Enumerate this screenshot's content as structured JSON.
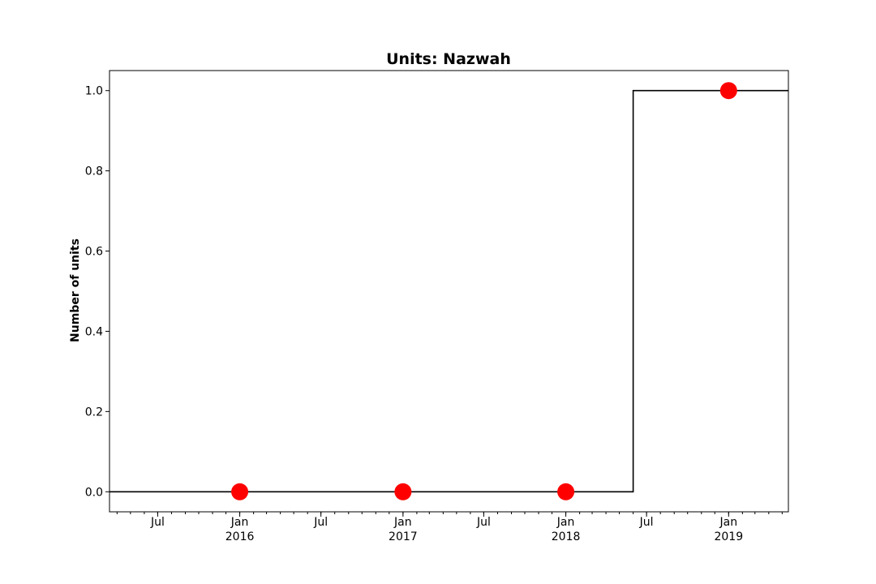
{
  "chart_data": {
    "type": "line",
    "title": "Units: Nazwah",
    "xlabel": "",
    "ylabel": "Number of units",
    "x_range": [
      "2015-03-15",
      "2019-05-15"
    ],
    "ylim": [
      -0.05,
      1.05
    ],
    "grid": false,
    "y_ticks": [
      "0.0",
      "0.2",
      "0.4",
      "0.6",
      "0.8",
      "1.0"
    ],
    "y_tick_values": [
      0,
      0.2,
      0.4,
      0.6,
      0.8,
      1.0
    ],
    "x_major_ticks": [
      {
        "date": "2015-07-01",
        "label": "Jul"
      },
      {
        "date": "2016-01-01",
        "label": "Jan",
        "sublabel": "2016"
      },
      {
        "date": "2016-07-01",
        "label": "Jul"
      },
      {
        "date": "2017-01-01",
        "label": "Jan",
        "sublabel": "2017"
      },
      {
        "date": "2017-07-01",
        "label": "Jul"
      },
      {
        "date": "2018-01-01",
        "label": "Jan",
        "sublabel": "2018"
      },
      {
        "date": "2018-07-01",
        "label": "Jul"
      },
      {
        "date": "2019-01-01",
        "label": "Jan",
        "sublabel": "2019"
      }
    ],
    "series": [
      {
        "type": "step",
        "color": "#000000",
        "points": [
          {
            "x": "2015-03-15",
            "y": 0
          },
          {
            "x": "2018-06-01",
            "y": 0
          },
          {
            "x": "2018-06-01",
            "y": 1
          },
          {
            "x": "2019-05-15",
            "y": 1
          }
        ]
      },
      {
        "type": "scatter",
        "color": "#ff0000",
        "points": [
          {
            "x": "2016-01-01",
            "y": 0
          },
          {
            "x": "2017-01-01",
            "y": 0
          },
          {
            "x": "2018-01-01",
            "y": 0
          },
          {
            "x": "2019-01-01",
            "y": 1
          }
        ]
      }
    ]
  }
}
